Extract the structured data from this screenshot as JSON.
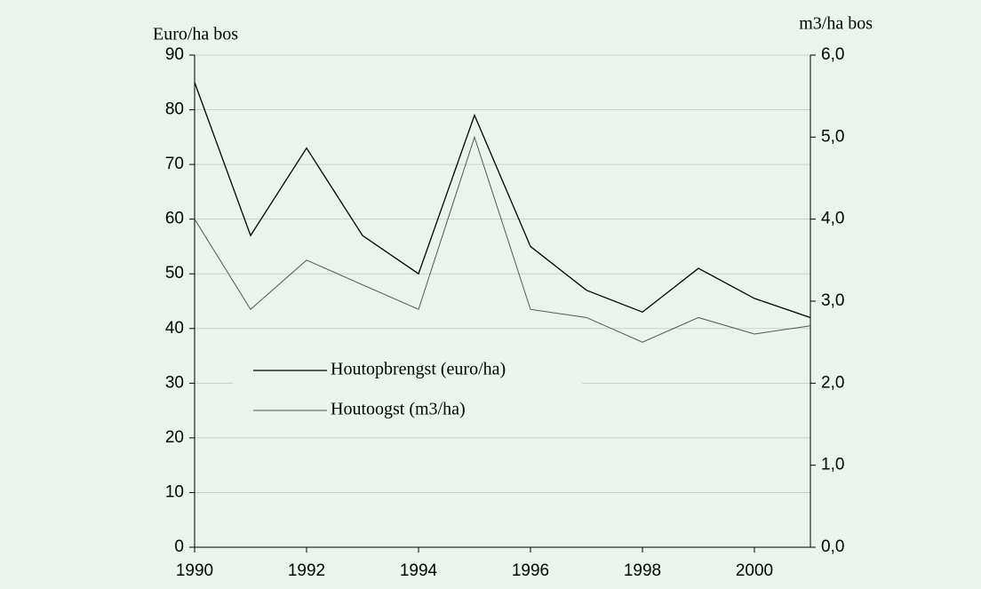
{
  "chart_data": {
    "type": "line",
    "y_label": "Euro/ha bos",
    "y2_label": "m3/ha bos",
    "x": [
      1990,
      1991,
      1992,
      1993,
      1994,
      1995,
      1996,
      1997,
      1998,
      1999,
      2000,
      2001
    ],
    "series": [
      {
        "name": "Houtopbrengst (euro/ha)",
        "color": "#000000",
        "values": [
          85,
          57,
          73,
          57,
          50,
          79,
          55,
          47,
          43,
          51,
          45.5,
          42
        ]
      },
      {
        "name": "Houtoogst (m3/ha)",
        "color": "#555555",
        "axis": "y2",
        "values": [
          4.0,
          2.9,
          3.5,
          3.2,
          2.9,
          5.0,
          2.9,
          2.8,
          2.5,
          2.8,
          2.6,
          2.7
        ]
      }
    ],
    "xlim": [
      1990,
      2001
    ],
    "xticks": [
      1990,
      1992,
      1994,
      1996,
      1998,
      2000
    ],
    "ylim": [
      0,
      90
    ],
    "yticks": [
      0,
      10,
      20,
      30,
      40,
      50,
      60,
      70,
      80,
      90
    ],
    "y2lim": [
      0,
      6
    ],
    "y2ticks": [
      {
        "value": 0,
        "label": "0,0"
      },
      {
        "value": 1,
        "label": "1,0"
      },
      {
        "value": 2,
        "label": "2,0"
      },
      {
        "value": 3,
        "label": "3,0"
      },
      {
        "value": 4,
        "label": "4,0"
      },
      {
        "value": 5,
        "label": "5,0"
      },
      {
        "value": 6,
        "label": "6,0"
      }
    ],
    "grid": true
  }
}
